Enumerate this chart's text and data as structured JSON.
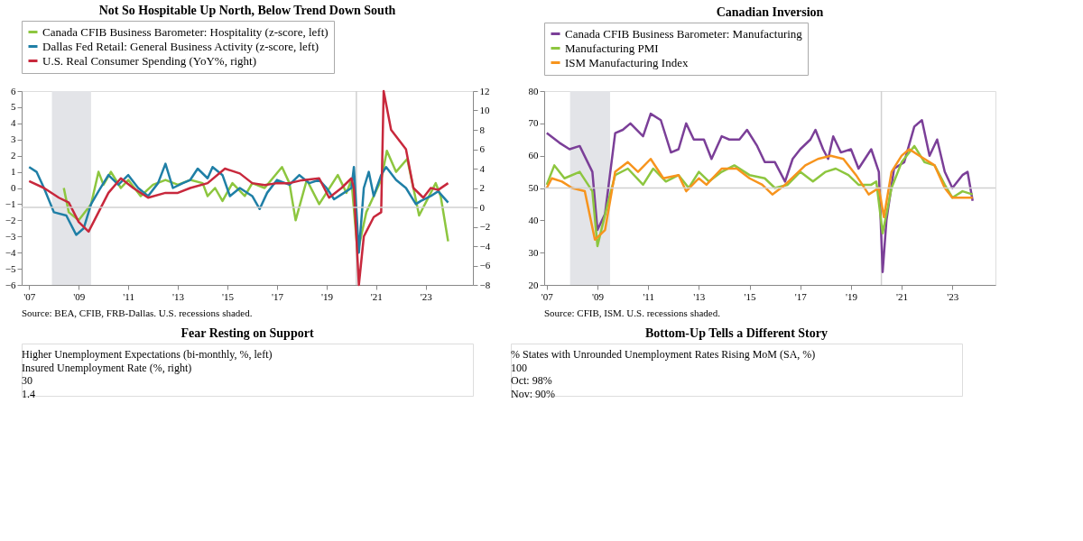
{
  "chart_data": [
    {
      "type": "line",
      "title": "Not So Hospitable Up North, Below Trend Down South",
      "legend": "top",
      "marker": "none",
      "line_style": "solid",
      "grid": false,
      "xlim": [
        2006.7,
        2024.9
      ],
      "xticks": [
        {
          "value": 2007,
          "label": "'07"
        },
        {
          "value": 2009,
          "label": "'09"
        },
        {
          "value": 2011,
          "label": "'11"
        },
        {
          "value": 2013,
          "label": "'13"
        },
        {
          "value": 2015,
          "label": "'15"
        },
        {
          "value": 2017,
          "label": "'17"
        },
        {
          "value": 2019,
          "label": "'19"
        },
        {
          "value": 2021,
          "label": "'21"
        },
        {
          "value": 2023,
          "label": "'23"
        }
      ],
      "ylim": [
        -6,
        6
      ],
      "yticks": [
        -6,
        -5,
        -4,
        -3,
        -2,
        -1,
        0,
        1,
        2,
        3,
        4,
        5,
        6
      ],
      "y2lim": [
        -8,
        12
      ],
      "y2ticks": [
        -8,
        -6,
        -4,
        -2,
        0,
        2,
        4,
        6,
        8,
        10,
        12
      ],
      "series": [
        {
          "name": "Canada CFIB Business Barometer: Hospitality (z-score, left)",
          "color": "#8dc63f",
          "x": [
            2008.4,
            2008.6,
            2009.0,
            2009.5,
            2009.8,
            2010.0,
            2010.3,
            2010.7,
            2011.0,
            2011.5,
            2012.0,
            2012.5,
            2013.0,
            2013.5,
            2014.0,
            2014.2,
            2014.5,
            2014.8,
            2015.2,
            2015.7,
            2016.0,
            2016.5,
            2017.2,
            2017.5,
            2017.75,
            2018.2,
            2018.7,
            2019.45,
            2019.8,
            2020.0,
            2020.25,
            2020.6,
            2020.9,
            2021.2,
            2021.43,
            2021.8,
            2022.25,
            2022.5,
            2022.73,
            2023.2,
            2023.4,
            2023.6,
            2023.9
          ],
          "values": [
            0.0,
            -1.5,
            -2,
            -1,
            1.0,
            0.2,
            1.0,
            0.0,
            0.5,
            -0.5,
            0.2,
            0.5,
            0.2,
            0.5,
            0.3,
            -0.5,
            0,
            -0.8,
            0.3,
            -0.5,
            0.3,
            0,
            1.3,
            0.3,
            -2.0,
            0.5,
            -1.0,
            0.8,
            -0.3,
            0.5,
            -4,
            -1.5,
            -0.5,
            0.5,
            2.3,
            1.0,
            1.8,
            0,
            -1.7,
            -0.3,
            0.3,
            -0.5,
            -3.3
          ]
        },
        {
          "name": "Dallas Fed Retail: General Business Activity (z-score, left)",
          "color": "#1f7fa6",
          "x": [
            2007.0,
            2007.3,
            2007.6,
            2008.0,
            2008.5,
            2008.9,
            2009.2,
            2009.5,
            2009.8,
            2010.2,
            2010.6,
            2011.0,
            2011.4,
            2011.8,
            2012.2,
            2012.5,
            2012.8,
            2013.2,
            2013.5,
            2013.8,
            2014.2,
            2014.4,
            2014.8,
            2015.1,
            2015.5,
            2016.0,
            2016.3,
            2016.6,
            2017.0,
            2017.5,
            2017.9,
            2018.3,
            2018.7,
            2019.0,
            2019.3,
            2019.6,
            2020.0,
            2020.1,
            2020.3,
            2020.5,
            2020.7,
            2020.9,
            2021.2,
            2021.4,
            2021.8,
            2022.2,
            2022.6,
            2022.8,
            2023.2,
            2023.5,
            2023.9
          ],
          "values": [
            1.3,
            1.0,
            0.0,
            -1.5,
            -1.7,
            -2.9,
            -2.5,
            -1.0,
            -0.2,
            0.8,
            0.2,
            0.8,
            0,
            -0.5,
            0.3,
            1.5,
            0,
            0.3,
            0.5,
            1.2,
            0.6,
            1.3,
            0.8,
            -0.5,
            0,
            -0.5,
            -1.3,
            -0.3,
            0.5,
            0.2,
            0.8,
            0.3,
            0.5,
            0.0,
            -0.7,
            -0.4,
            0.0,
            1.3,
            -4.0,
            0.0,
            1.0,
            -0.5,
            0.8,
            1.3,
            0.5,
            0.0,
            -1.0,
            -0.8,
            -0.5,
            -0.2,
            -0.9
          ]
        },
        {
          "name": "U.S. Real Consumer Spending (YoY%, right)",
          "color": "#c8283c",
          "axis": "y2",
          "x": [
            2007.0,
            2007.6,
            2008.2,
            2008.6,
            2009.0,
            2009.4,
            2009.8,
            2010.2,
            2010.7,
            2011.2,
            2011.8,
            2012.5,
            2013.0,
            2013.5,
            2014.2,
            2014.9,
            2015.5,
            2016.0,
            2016.5,
            2017.0,
            2017.5,
            2018.0,
            2018.7,
            2019.1,
            2019.6,
            2020.0,
            2020.1,
            2020.3,
            2020.5,
            2020.9,
            2021.2,
            2021.3,
            2021.6,
            2021.9,
            2022.2,
            2022.5,
            2022.9,
            2023.2,
            2023.5,
            2023.9
          ],
          "values": [
            2.7,
            2.0,
            1.0,
            0.5,
            -1.5,
            -2.5,
            -0.5,
            1.5,
            3.0,
            2.0,
            1.0,
            1.5,
            1.5,
            2.0,
            2.5,
            4.0,
            3.5,
            2.5,
            2.3,
            2.5,
            2.5,
            2.8,
            3.0,
            1.0,
            2.0,
            3.0,
            2.0,
            -8.0,
            -3.0,
            -1.0,
            -0.5,
            12.0,
            8.0,
            7.0,
            6.0,
            2.0,
            1.0,
            2.0,
            1.8,
            2.5
          ]
        }
      ],
      "bands": [
        {
          "axis": "x",
          "from": 2007.92,
          "to": 2009.5,
          "color": "#e3e4e8"
        }
      ],
      "ref_lines": [
        {
          "axis": "x",
          "value": 2020.2,
          "color": "#d0d0d0"
        },
        {
          "axis": "y2",
          "value": 0,
          "color": "#d0d0d0"
        }
      ],
      "annotations": [
        "Source: BEA, CFIB, FRB-Dallas. U.S. recessions shaded."
      ]
    },
    {
      "type": "line",
      "title": "Canadian Inversion",
      "legend": "top",
      "marker": "none",
      "line_style": "solid",
      "grid": false,
      "xlim": [
        2006.9,
        2024.7
      ],
      "xticks": [
        {
          "value": 2007,
          "label": "'07"
        },
        {
          "value": 2009,
          "label": "'09"
        },
        {
          "value": 2011,
          "label": "'11"
        },
        {
          "value": 2013,
          "label": "'13"
        },
        {
          "value": 2015,
          "label": "'15"
        },
        {
          "value": 2017,
          "label": "'17"
        },
        {
          "value": 2019,
          "label": "'19"
        },
        {
          "value": 2021,
          "label": "'21"
        },
        {
          "value": 2023,
          "label": "'23"
        }
      ],
      "ylim": [
        20,
        80
      ],
      "yticks": [
        20,
        30,
        40,
        50,
        60,
        70,
        80
      ],
      "series": [
        {
          "name": "Canada CFIB Business Barometer: Manufacturing",
          "color": "#7b3f98",
          "x": [
            2007.0,
            2007.5,
            2007.9,
            2008.3,
            2008.8,
            2009.0,
            2009.3,
            2009.7,
            2010.0,
            2010.3,
            2010.8,
            2011.1,
            2011.5,
            2011.9,
            2012.2,
            2012.5,
            2012.8,
            2013.2,
            2013.5,
            2013.9,
            2014.2,
            2014.6,
            2014.9,
            2015.3,
            2015.6,
            2016.0,
            2016.4,
            2016.7,
            2017.0,
            2017.4,
            2017.6,
            2017.9,
            2018.1,
            2018.3,
            2018.6,
            2019.0,
            2019.3,
            2019.8,
            2020.1,
            2020.25,
            2020.4,
            2020.7,
            2021.1,
            2021.5,
            2021.8,
            2022.1,
            2022.4,
            2022.7,
            2023.0,
            2023.4,
            2023.6,
            2023.8
          ],
          "values": [
            67,
            64,
            62,
            63,
            55,
            37,
            42,
            67,
            68,
            70,
            66,
            73,
            71,
            61,
            62,
            70,
            65,
            65,
            59,
            66,
            65,
            65,
            68,
            63,
            58,
            58,
            52,
            59,
            62,
            65,
            68,
            62,
            59,
            66,
            61,
            62,
            56,
            62,
            55,
            24,
            40,
            56,
            58,
            69,
            71,
            60,
            65,
            55,
            50,
            54,
            55,
            46
          ]
        },
        {
          "name": "Manufacturing PMI",
          "color": "#8dc63f",
          "x": [
            2007.0,
            2007.3,
            2007.7,
            2008.3,
            2008.8,
            2009.0,
            2009.4,
            2009.7,
            2010.2,
            2010.8,
            2011.2,
            2011.7,
            2012.2,
            2012.6,
            2013.0,
            2013.4,
            2013.9,
            2014.4,
            2015.0,
            2015.6,
            2016.0,
            2016.5,
            2017.0,
            2017.5,
            2018.0,
            2018.4,
            2018.9,
            2019.3,
            2019.8,
            2020.0,
            2020.25,
            2020.6,
            2021.0,
            2021.5,
            2021.9,
            2022.3,
            2022.7,
            2023.0,
            2023.4,
            2023.8
          ],
          "values": [
            51,
            57,
            53,
            55,
            49,
            32,
            45,
            54,
            56,
            51,
            56,
            52,
            54,
            50,
            55,
            52,
            55,
            57,
            54,
            53,
            50,
            51,
            55,
            52,
            55,
            56,
            54,
            51,
            51,
            52,
            36,
            50,
            58,
            63,
            58,
            57,
            51,
            47,
            49,
            48
          ]
        },
        {
          "name": "ISM Manufacturing Index",
          "color": "#f7941d",
          "x": [
            2007.0,
            2007.2,
            2007.6,
            2008.0,
            2008.5,
            2008.9,
            2009.3,
            2009.7,
            2010.2,
            2010.6,
            2011.1,
            2011.6,
            2012.2,
            2012.5,
            2013.0,
            2013.3,
            2013.9,
            2014.5,
            2015.0,
            2015.5,
            2015.9,
            2016.4,
            2016.8,
            2017.2,
            2017.7,
            2018.2,
            2018.7,
            2019.2,
            2019.7,
            2020.1,
            2020.3,
            2020.6,
            2021.0,
            2021.3,
            2021.9,
            2022.3,
            2022.7,
            2023.0,
            2023.5,
            2023.8
          ],
          "values": [
            50,
            53,
            52,
            50,
            49,
            34,
            37,
            55,
            58,
            55,
            59,
            53,
            54,
            49,
            53,
            51,
            56,
            56,
            53,
            51,
            48,
            51,
            54,
            57,
            59,
            60,
            59,
            54,
            48,
            50,
            41,
            55,
            60,
            62,
            59,
            57,
            50,
            47,
            47,
            47
          ]
        }
      ],
      "bands": [
        {
          "axis": "x",
          "from": 2007.92,
          "to": 2009.5,
          "color": "#e3e4e8"
        }
      ],
      "ref_lines": [
        {
          "axis": "x",
          "value": 2020.2,
          "color": "#d0d0d0"
        },
        {
          "axis": "y",
          "value": 50,
          "color": "#d0d0d0"
        }
      ],
      "annotations": [
        "Source: CFIB, ISM. U.S. recessions shaded."
      ]
    },
    {
      "type": "other",
      "title": "Fear Resting on Support",
      "annotations": [
        "Higher Unemployment Expectations (bi-monthly, %, left)",
        "Insured Unemployment Rate (%, right)",
        "30",
        "1.4"
      ]
    },
    {
      "type": "other",
      "title": "Bottom-Up Tells a Different Story",
      "annotations": [
        "% States with Unrounded Unemployment Rates Rising MoM (SA, %)",
        "100",
        "Oct: 98%",
        "Nov: 90%"
      ]
    }
  ]
}
